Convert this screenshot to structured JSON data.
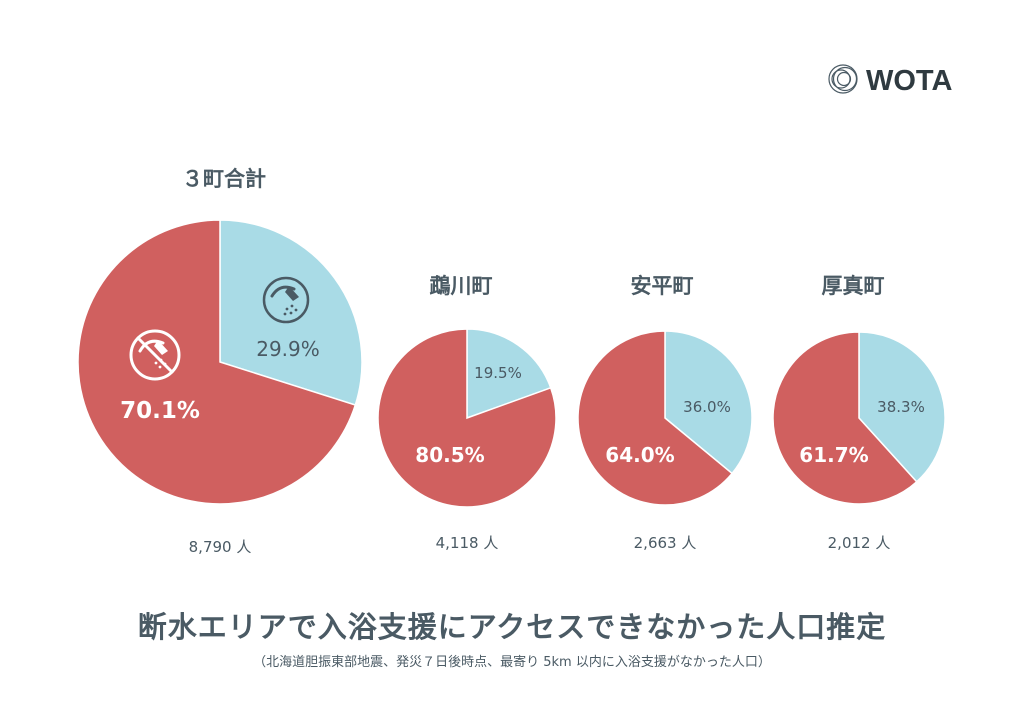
{
  "brand": {
    "name": "WOTA"
  },
  "colors": {
    "red": "#d0605f",
    "blue": "#a9dbe6",
    "text": "#4a5a64",
    "white": "#ffffff"
  },
  "icons": {
    "no_shower": "no-shower-icon",
    "shower": "shower-icon"
  },
  "title": "断水エリアで入浴支援にアクセスできなかった人口推定",
  "subtitle": "（北海道胆振東部地震、発災７日後時点、最寄り 5km 以内に入浴支援がなかった人口）",
  "chart_data": [
    {
      "type": "pie",
      "title": "３町合計",
      "total_label": "8,790 人",
      "slices": [
        {
          "value": 29.9,
          "label": "29.9%",
          "color": "#a9dbe6"
        },
        {
          "value": 70.1,
          "label": "70.1%",
          "color": "#d0605f"
        }
      ]
    },
    {
      "type": "pie",
      "title": "鵡川町",
      "total_label": "4,118 人",
      "slices": [
        {
          "value": 19.5,
          "label": "19.5%",
          "color": "#a9dbe6"
        },
        {
          "value": 80.5,
          "label": "80.5%",
          "color": "#d0605f"
        }
      ]
    },
    {
      "type": "pie",
      "title": "安平町",
      "total_label": "2,663 人",
      "slices": [
        {
          "value": 36.0,
          "label": "36.0%",
          "color": "#a9dbe6"
        },
        {
          "value": 64.0,
          "label": "64.0%",
          "color": "#d0605f"
        }
      ]
    },
    {
      "type": "pie",
      "title": "厚真町",
      "total_label": "2,012 人",
      "slices": [
        {
          "value": 38.3,
          "label": "38.3%",
          "color": "#a9dbe6"
        },
        {
          "value": 61.7,
          "label": "61.7%",
          "color": "#d0605f"
        }
      ]
    }
  ]
}
